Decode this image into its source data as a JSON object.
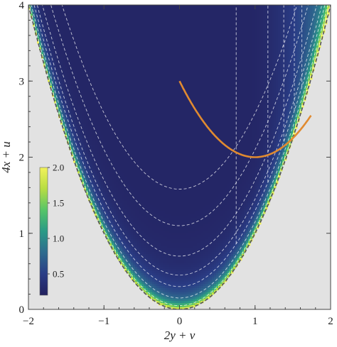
{
  "chart_data": {
    "type": "heatmap",
    "xlabel": "2y + v",
    "ylabel": "4x + u",
    "xlim": [
      -2,
      2
    ],
    "ylim": [
      0,
      4
    ],
    "x_ticks": [
      "−2",
      "−1",
      "0",
      "1",
      "2"
    ],
    "y_ticks": [
      "0",
      "1",
      "2",
      "3",
      "4"
    ],
    "x_tick_values": [
      -2,
      -1,
      0,
      1,
      2
    ],
    "y_tick_values": [
      0,
      1,
      2,
      3,
      4
    ],
    "region_boundary": "4x + u = (2y + v)^2",
    "outside_region_color": "#e2e2e2",
    "colormap": [
      "#23215f",
      "#2a3d86",
      "#2e6b8e",
      "#2a9a86",
      "#56c568",
      "#b7dd43",
      "#f2f25a"
    ],
    "colorbar": {
      "range": [
        0.2,
        2.0
      ],
      "ticks": [
        "0.5",
        "1.0",
        "1.5",
        "2.0"
      ],
      "tick_values": [
        0.5,
        1.0,
        1.5,
        2.0
      ]
    },
    "contours": {
      "style": "dashed",
      "color": "#ffffff",
      "parabola_minima": [
        0.05,
        0.15,
        0.3,
        0.45,
        0.7,
        1.1,
        1.58
      ],
      "vertical_lines_x": [
        0.75,
        1.17,
        1.38,
        1.52,
        1.62
      ]
    },
    "boundary_curve": {
      "style": "dashed",
      "color": "#555555"
    },
    "highlight_curve": {
      "color": "#e08a30",
      "equation": "4x + u = 2 + (2y + v − 1)^2",
      "vertex": [
        1,
        2
      ],
      "x_range": [
        0,
        1.74
      ]
    }
  }
}
